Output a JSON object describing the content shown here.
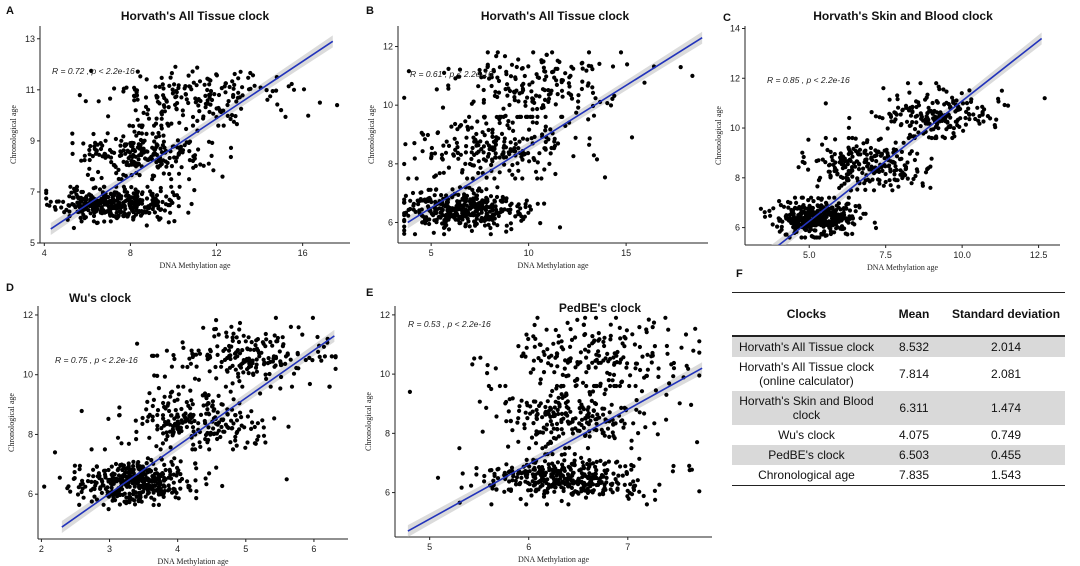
{
  "chart_data": [
    {
      "panel": "A",
      "type": "scatter",
      "title": "Horvath's All Tissue clock",
      "xlabel": "DNA Methylation age",
      "ylabel": "Chronological age",
      "xlim": [
        3.8,
        18.2
      ],
      "ylim": [
        5.0,
        13.5
      ],
      "xticks": [
        4,
        8,
        12,
        16
      ],
      "yticks": [
        5,
        7,
        9,
        11,
        13
      ],
      "stat_r": "R = 0.72",
      "stat_p": "p < 2.2e-16",
      "fit": {
        "x": [
          4.3,
          17.4
        ],
        "y": [
          5.55,
          12.9
        ]
      },
      "seed": 11,
      "clusters": [
        {
          "n": 360,
          "mx": 7.2,
          "sx": 1.3,
          "my": 6.5,
          "sy": 0.32,
          "ymin": 5.4,
          "ymax": 7.2
        },
        {
          "n": 230,
          "mx": 8.6,
          "sx": 1.6,
          "my": 8.6,
          "sy": 0.5,
          "ymin": 7.5,
          "ymax": 9.6
        },
        {
          "n": 190,
          "mx": 11.0,
          "sx": 2.0,
          "my": 10.7,
          "sy": 0.6,
          "ymin": 9.6,
          "ymax": 11.9
        }
      ],
      "extra_points": [
        [
          16.8,
          10.5
        ],
        [
          17.6,
          10.4
        ],
        [
          15.6,
          11.0
        ],
        [
          14.8,
          11.5
        ]
      ]
    },
    {
      "panel": "B",
      "type": "scatter",
      "title": "Horvath's All Tissue clock",
      "xlabel": "DNA Methylation age",
      "ylabel": "Chronological age",
      "xlim": [
        3.3,
        19.2
      ],
      "ylim": [
        5.3,
        12.7
      ],
      "xticks": [
        5,
        10,
        15
      ],
      "yticks": [
        6,
        8,
        10,
        12
      ],
      "stat_r": "R = 0.61",
      "stat_p": "p < 2.2e-16",
      "fit": {
        "x": [
          3.8,
          18.9
        ],
        "y": [
          6.0,
          12.3
        ]
      },
      "seed": 23,
      "clusters": [
        {
          "n": 360,
          "mx": 6.5,
          "sx": 1.5,
          "my": 6.4,
          "sy": 0.35,
          "ymin": 5.6,
          "ymax": 7.2
        },
        {
          "n": 230,
          "mx": 8.2,
          "sx": 2.0,
          "my": 8.6,
          "sy": 0.55,
          "ymin": 7.5,
          "ymax": 9.6
        },
        {
          "n": 180,
          "mx": 10.0,
          "sx": 2.3,
          "my": 10.7,
          "sy": 0.6,
          "ymin": 9.6,
          "ymax": 11.8
        }
      ],
      "extra_points": [
        [
          17.8,
          11.3
        ],
        [
          18.4,
          11.0
        ],
        [
          15.3,
          8.9
        ]
      ]
    },
    {
      "panel": "C",
      "type": "scatter",
      "title": "Horvath's Skin and Blood clock",
      "xlabel": "DNA Methylation age",
      "ylabel": "Chronological age",
      "xlim": [
        2.9,
        13.2
      ],
      "ylim": [
        5.3,
        14.1
      ],
      "xticks": [
        5.0,
        7.5,
        10.0,
        12.5
      ],
      "yticks": [
        6,
        8,
        10,
        12,
        14
      ],
      "stat_r": "R = 0.85",
      "stat_p": "p < 2.2e-16",
      "fit": {
        "x": [
          3.7,
          12.6
        ],
        "y": [
          5.0,
          13.6
        ]
      },
      "seed": 37,
      "clusters": [
        {
          "n": 380,
          "mx": 5.3,
          "sx": 0.65,
          "my": 6.4,
          "sy": 0.35,
          "ymin": 5.6,
          "ymax": 7.2
        },
        {
          "n": 230,
          "mx": 6.9,
          "sx": 0.9,
          "my": 8.5,
          "sy": 0.5,
          "ymin": 7.5,
          "ymax": 9.6
        },
        {
          "n": 200,
          "mx": 8.9,
          "sx": 1.0,
          "my": 10.6,
          "sy": 0.55,
          "ymin": 9.6,
          "ymax": 11.8
        }
      ],
      "extra_points": [
        [
          12.7,
          11.2
        ],
        [
          11.3,
          11.5
        ],
        [
          11.5,
          10.9
        ]
      ]
    },
    {
      "panel": "D",
      "type": "scatter",
      "title": "Wu's clock",
      "xlabel": "DNA Methylation age",
      "ylabel": "Chronological age",
      "xlim": [
        1.95,
        6.5
      ],
      "ylim": [
        4.5,
        12.3
      ],
      "xticks": [
        2,
        3,
        4,
        5,
        6
      ],
      "yticks": [
        6,
        8,
        10,
        12
      ],
      "stat_r": "R = 0.75",
      "stat_p": "p < 2.2e-16",
      "fit": {
        "x": [
          2.3,
          6.3
        ],
        "y": [
          4.9,
          11.3
        ]
      },
      "seed": 53,
      "clusters": [
        {
          "n": 380,
          "mx": 3.35,
          "sx": 0.4,
          "my": 6.4,
          "sy": 0.35,
          "ymin": 5.5,
          "ymax": 7.2
        },
        {
          "n": 230,
          "mx": 4.3,
          "sx": 0.55,
          "my": 8.5,
          "sy": 0.5,
          "ymin": 7.5,
          "ymax": 9.6
        },
        {
          "n": 200,
          "mx": 5.1,
          "sx": 0.55,
          "my": 10.6,
          "sy": 0.55,
          "ymin": 9.6,
          "ymax": 11.9
        }
      ],
      "extra_points": [
        [
          2.2,
          7.4
        ],
        [
          6.2,
          11.2
        ],
        [
          5.6,
          6.5
        ]
      ]
    },
    {
      "panel": "E",
      "type": "scatter",
      "title": "PedBE's clock",
      "xlabel": "DNA Methylation age",
      "ylabel": "Chronological age",
      "xlim": [
        4.65,
        7.85
      ],
      "ylim": [
        4.5,
        12.3
      ],
      "xticks": [
        5,
        6,
        7
      ],
      "yticks": [
        6,
        8,
        10,
        12
      ],
      "stat_r": "R = 0.53",
      "stat_p": "p < 2.2e-16",
      "fit": {
        "x": [
          4.78,
          7.75
        ],
        "y": [
          4.7,
          10.2
        ]
      },
      "seed": 71,
      "clusters": [
        {
          "n": 380,
          "mx": 6.35,
          "sx": 0.42,
          "my": 6.5,
          "sy": 0.35,
          "ymin": 5.6,
          "ymax": 7.3
        },
        {
          "n": 230,
          "mx": 6.5,
          "sx": 0.45,
          "my": 8.5,
          "sy": 0.55,
          "ymin": 7.5,
          "ymax": 9.6
        },
        {
          "n": 200,
          "mx": 6.7,
          "sx": 0.45,
          "my": 10.6,
          "sy": 0.6,
          "ymin": 9.6,
          "ymax": 11.9
        }
      ],
      "extra_points": [
        [
          4.8,
          9.4
        ],
        [
          7.7,
          7.7
        ],
        [
          5.3,
          7.5
        ]
      ]
    },
    {
      "panel": "F",
      "type": "table",
      "columns": [
        "Clocks",
        "Mean",
        "Standard deviation"
      ],
      "rows": [
        {
          "name": "Horvath's All Tissue clock",
          "mean": "8.532",
          "sd": "2.014",
          "shaded": true
        },
        {
          "name": "Horvath's All Tissue clock (online calculator)",
          "mean": "7.814",
          "sd": "2.081",
          "shaded": false
        },
        {
          "name": "Horvath's Skin and Blood clock",
          "mean": "6.311",
          "sd": "1.474",
          "shaded": true
        },
        {
          "name": "Wu's clock",
          "mean": "4.075",
          "sd": "0.749",
          "shaded": false
        },
        {
          "name": "PedBE's clock",
          "mean": "6.503",
          "sd": "0.455",
          "shaded": true
        },
        {
          "name": "Chronological age",
          "mean": "7.835",
          "sd": "1.543",
          "shaded": false
        }
      ]
    }
  ],
  "colors": {
    "points": "#000000",
    "fit_line": "#2233bb",
    "ci_band": "#c8c8c8",
    "table_shade": "#d9d9d9"
  }
}
